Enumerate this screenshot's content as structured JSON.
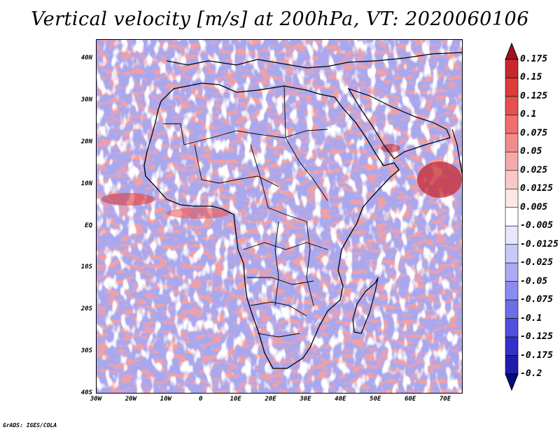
{
  "title": "Vertical velocity [m/s] at 200hPa, VT: 2020060106",
  "credit": "GrADS: IGES/COLA",
  "map": {
    "lat_ticks": [
      "40N",
      "30N",
      "20N",
      "10N",
      "EQ",
      "10S",
      "20S",
      "30S",
      "40S"
    ],
    "lon_ticks": [
      "30W",
      "20W",
      "10W",
      "0",
      "10E",
      "20E",
      "30E",
      "40E",
      "50E",
      "60E",
      "70E"
    ],
    "lon_range": [
      -30,
      75
    ],
    "lat_range": [
      -40,
      45
    ]
  },
  "colorbar": {
    "levels": [
      "0.175",
      "0.15",
      "0.125",
      "0.1",
      "0.075",
      "0.05",
      "0.025",
      "0.0125",
      "0.005",
      "-0.005",
      "-0.0125",
      "-0.025",
      "-0.05",
      "-0.075",
      "-0.1",
      "-0.125",
      "-0.175",
      "-0.2"
    ],
    "colors": [
      "#a0141e",
      "#c8282d",
      "#dc3c3c",
      "#e65050",
      "#f06e6e",
      "#f08c8c",
      "#f5aaaa",
      "#fac8c8",
      "#fde6e6",
      "#ffffff",
      "#e6e6fd",
      "#c8c8fa",
      "#aaaaf5",
      "#8c8cf0",
      "#6e6ee6",
      "#5050dc",
      "#3232c8",
      "#1e1eaa",
      "#0a0a80"
    ]
  }
}
